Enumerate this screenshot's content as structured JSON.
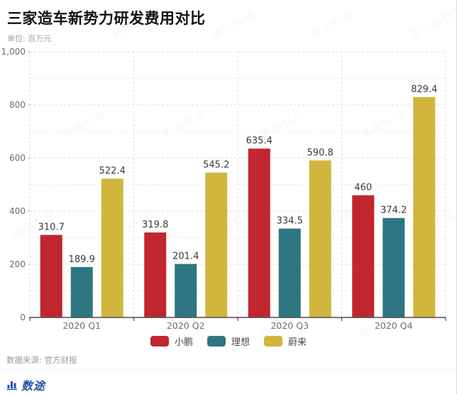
{
  "page": {
    "title": "三家造车新势力研发费用对比",
    "unit_label": "单位: 百万元",
    "source": "数据来源: 官方财报",
    "brand": "数途",
    "brand_color": "#2356a6",
    "watermark_text": "腾讯科技"
  },
  "chart_data": {
    "type": "bar",
    "title": "三家造车新势力研发费用对比",
    "unit": "百万元",
    "categories": [
      "2020 Q1",
      "2020 Q2",
      "2020 Q3",
      "2020 Q4"
    ],
    "series": [
      {
        "name": "小鹏",
        "color": "#c2262e",
        "values": [
          310.7,
          319.8,
          635.4,
          460
        ]
      },
      {
        "name": "理想",
        "color": "#2e7682",
        "values": [
          189.9,
          201.4,
          334.5,
          374.2
        ]
      },
      {
        "name": "蔚来",
        "color": "#d2b53d",
        "values": [
          522.4,
          545.2,
          590.8,
          829.4
        ]
      }
    ],
    "ylim": [
      0,
      1000
    ],
    "ytick_step": 200,
    "grid_step": 100,
    "grid": "dashed horizontal every 100, dashed vertical at category boundaries",
    "legend_position": "bottom-center",
    "value_labels": true,
    "ytick_label_top": "1,000"
  }
}
